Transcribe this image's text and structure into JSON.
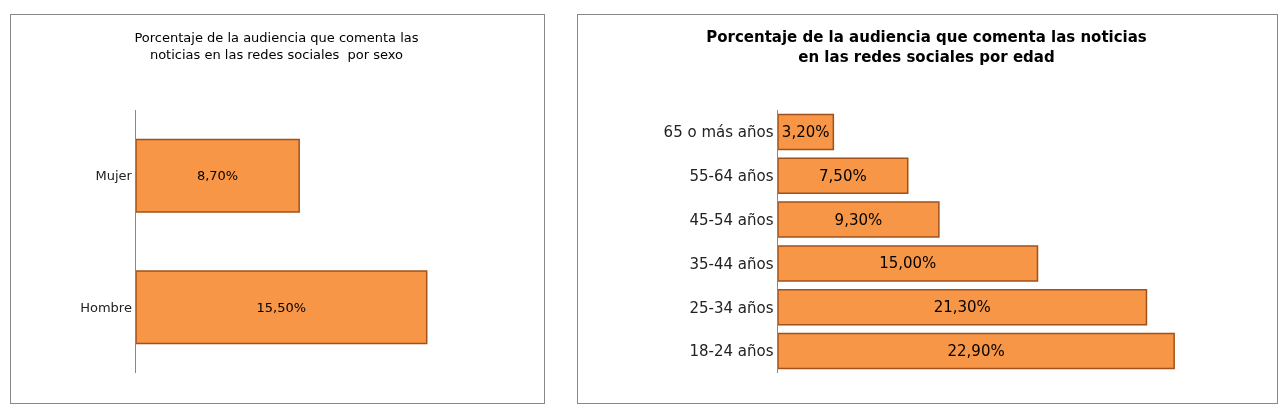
{
  "chart_data": [
    {
      "type": "bar",
      "orientation": "horizontal",
      "title": "Porcentaje de la audiencia que comenta las\nnoticias en las redes sociales  por sexo",
      "categories": [
        "Mujer",
        "Hombre"
      ],
      "values": [
        8.7,
        15.5
      ],
      "value_labels": [
        "8,70%",
        "15,50%"
      ],
      "color": "#f79646",
      "grid": false,
      "legend": false,
      "tick_labels": "y"
    },
    {
      "type": "bar",
      "orientation": "horizontal",
      "title": "Porcentaje de la audiencia que comenta las noticias\nen las redes sociales por edad",
      "categories": [
        "65 o más años",
        "55-64 años",
        "45-54 años",
        "35-44 años",
        "25-34 años",
        "18-24 años"
      ],
      "values": [
        3.2,
        7.5,
        9.3,
        15.0,
        21.3,
        22.9
      ],
      "value_labels": [
        "3,20%",
        "7,50%",
        "9,30%",
        "15,00%",
        "21,30%",
        "22,90%"
      ],
      "color": "#f79646",
      "grid": false,
      "legend": false,
      "tick_labels": "y"
    }
  ]
}
